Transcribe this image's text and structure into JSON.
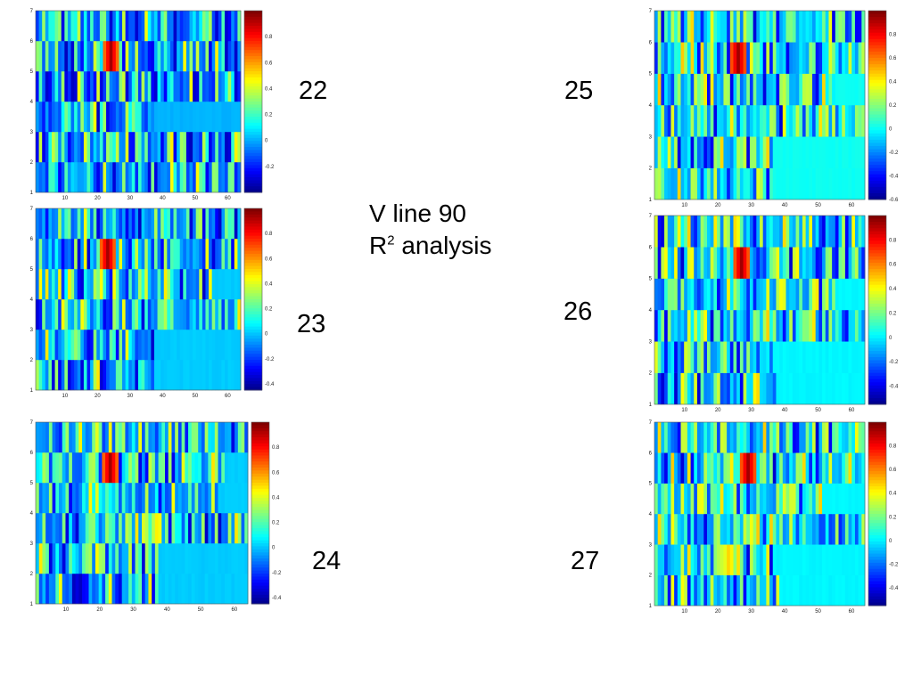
{
  "slide": {
    "title_line1": "V line 90",
    "title_line2_prefix": "R",
    "title_line2_sup": "2",
    "title_line2_suffix": " analysis"
  },
  "colormap": "jet",
  "chart_data": [
    {
      "id": "p22",
      "label": "22",
      "type": "heatmap",
      "xlim": [
        1,
        64
      ],
      "ylim": [
        1,
        7
      ],
      "x_ticks": [
        10,
        20,
        30,
        40,
        50,
        60
      ],
      "y_ticks": [
        1,
        2,
        3,
        4,
        5,
        6,
        7
      ],
      "clim": [
        -0.4,
        1
      ],
      "colorbar_ticks": [
        -0.2,
        0,
        0.2,
        0.4,
        0.6,
        0.8
      ],
      "row_extent": [
        64,
        64,
        37,
        64,
        64,
        64
      ],
      "hot_center": 24
    },
    {
      "id": "p23",
      "label": "23",
      "type": "heatmap",
      "xlim": [
        1,
        64
      ],
      "ylim": [
        1,
        7
      ],
      "x_ticks": [
        10,
        20,
        30,
        40,
        50,
        60
      ],
      "y_ticks": [
        1,
        2,
        3,
        4,
        5,
        6,
        7
      ],
      "clim": [
        -0.45,
        1
      ],
      "colorbar_ticks": [
        -0.4,
        -0.2,
        0,
        0.2,
        0.4,
        0.6,
        0.8
      ],
      "row_extent": [
        37,
        37,
        64,
        55,
        64,
        64
      ],
      "hot_center": 23
    },
    {
      "id": "p24",
      "label": "24",
      "type": "heatmap",
      "xlim": [
        1,
        64
      ],
      "ylim": [
        1,
        7
      ],
      "x_ticks": [
        10,
        20,
        30,
        40,
        50,
        60
      ],
      "y_ticks": [
        1,
        2,
        3,
        4,
        5,
        6,
        7
      ],
      "clim": [
        -0.45,
        1
      ],
      "colorbar_ticks": [
        -0.4,
        -0.2,
        0,
        0.2,
        0.4,
        0.6,
        0.8
      ],
      "row_extent": [
        37,
        37,
        64,
        55,
        57,
        64
      ],
      "hot_center": 23
    },
    {
      "id": "p25",
      "label": "25",
      "type": "heatmap",
      "xlim": [
        1,
        64
      ],
      "ylim": [
        1,
        7
      ],
      "x_ticks": [
        10,
        20,
        30,
        40,
        50,
        60
      ],
      "y_ticks": [
        1,
        2,
        3,
        4,
        5,
        6,
        7
      ],
      "clim": [
        -0.6,
        1
      ],
      "colorbar_ticks": [
        -0.6,
        -0.4,
        -0.2,
        0,
        0.2,
        0.4,
        0.6,
        0.8
      ],
      "row_extent": [
        36,
        36,
        64,
        55,
        64,
        64
      ],
      "hot_center": 26
    },
    {
      "id": "p26",
      "label": "26",
      "type": "heatmap",
      "xlim": [
        1,
        64
      ],
      "ylim": [
        1,
        7
      ],
      "x_ticks": [
        10,
        20,
        30,
        40,
        50,
        60
      ],
      "y_ticks": [
        1,
        2,
        3,
        4,
        5,
        6,
        7
      ],
      "clim": [
        -0.55,
        1
      ],
      "colorbar_ticks": [
        -0.4,
        -0.2,
        0,
        0.2,
        0.4,
        0.6,
        0.8
      ],
      "row_extent": [
        37,
        36,
        64,
        55,
        64,
        64
      ],
      "hot_center": 27
    },
    {
      "id": "p27",
      "label": "27",
      "type": "heatmap",
      "xlim": [
        1,
        64
      ],
      "ylim": [
        1,
        7
      ],
      "x_ticks": [
        10,
        20,
        30,
        40,
        50,
        60
      ],
      "y_ticks": [
        1,
        2,
        3,
        4,
        5,
        6,
        7
      ],
      "clim": [
        -0.55,
        1
      ],
      "colorbar_ticks": [
        -0.4,
        -0.2,
        0,
        0.2,
        0.4,
        0.6,
        0.8
      ],
      "row_extent": [
        38,
        36,
        64,
        51,
        64,
        64
      ],
      "hot_center": 29
    }
  ]
}
